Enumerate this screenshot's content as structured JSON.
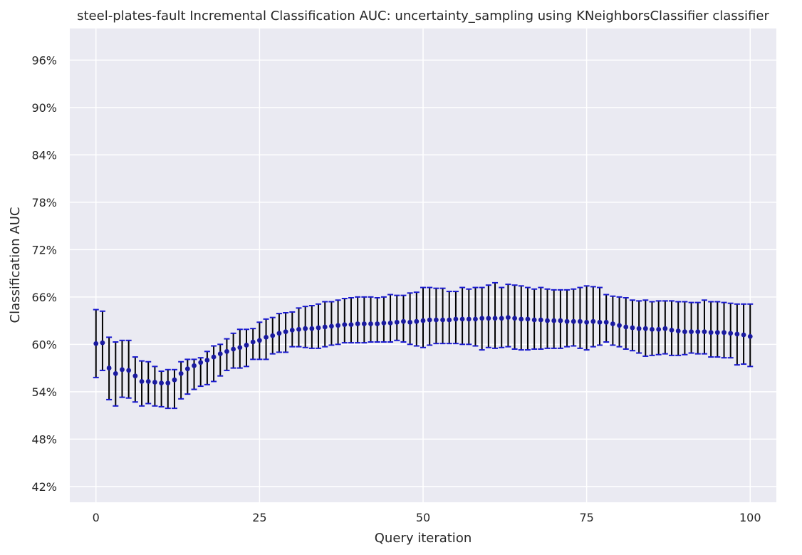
{
  "chart_data": {
    "type": "scatter",
    "title": "steel-plates-fault Incremental Classification AUC: uncertainty_sampling using KNeighborsClassifier classifier",
    "xlabel": "Query iteration",
    "ylabel": "Classification AUC",
    "xlim": [
      -4,
      104
    ],
    "ylim": [
      40,
      100
    ],
    "x_ticks": [
      0,
      25,
      50,
      75,
      100
    ],
    "y_ticks": [
      42,
      48,
      54,
      60,
      66,
      72,
      78,
      84,
      90,
      96
    ],
    "y_tick_labels": [
      "42%",
      "48%",
      "54%",
      "60%",
      "66%",
      "72%",
      "78%",
      "84%",
      "90%",
      "96%"
    ],
    "grid": true,
    "colors": {
      "background": "#eaeaf2",
      "grid": "#ffffff",
      "marker": "#1a1aa0",
      "errorbar": "#000000",
      "cap": "#1a1ad0"
    },
    "x": [
      0,
      1,
      2,
      3,
      4,
      5,
      6,
      7,
      8,
      9,
      10,
      11,
      12,
      13,
      14,
      15,
      16,
      17,
      18,
      19,
      20,
      21,
      22,
      23,
      24,
      25,
      26,
      27,
      28,
      29,
      30,
      31,
      32,
      33,
      34,
      35,
      36,
      37,
      38,
      39,
      40,
      41,
      42,
      43,
      44,
      45,
      46,
      47,
      48,
      49,
      50,
      51,
      52,
      53,
      54,
      55,
      56,
      57,
      58,
      59,
      60,
      61,
      62,
      63,
      64,
      65,
      66,
      67,
      68,
      69,
      70,
      71,
      72,
      73,
      74,
      75,
      76,
      77,
      78,
      79,
      80,
      81,
      82,
      83,
      84,
      85,
      86,
      87,
      88,
      89,
      90,
      91,
      92,
      93,
      94,
      95,
      96,
      97,
      98,
      99,
      100
    ],
    "mean": [
      60.1,
      60.2,
      57.0,
      56.3,
      56.8,
      56.7,
      56.0,
      55.3,
      55.3,
      55.2,
      55.1,
      55.1,
      55.5,
      56.3,
      56.9,
      57.3,
      57.7,
      58.0,
      58.4,
      58.8,
      59.1,
      59.4,
      59.6,
      59.9,
      60.3,
      60.5,
      60.9,
      61.1,
      61.4,
      61.6,
      61.8,
      61.9,
      62.0,
      62.0,
      62.1,
      62.2,
      62.3,
      62.4,
      62.5,
      62.5,
      62.6,
      62.6,
      62.6,
      62.6,
      62.7,
      62.7,
      62.8,
      62.9,
      62.8,
      62.9,
      63.0,
      63.1,
      63.1,
      63.1,
      63.1,
      63.2,
      63.2,
      63.2,
      63.2,
      63.3,
      63.3,
      63.3,
      63.3,
      63.4,
      63.3,
      63.2,
      63.2,
      63.1,
      63.1,
      63.0,
      63.0,
      63.0,
      62.9,
      62.9,
      62.9,
      62.8,
      62.9,
      62.8,
      62.8,
      62.6,
      62.4,
      62.2,
      62.1,
      62.0,
      62.0,
      61.9,
      61.9,
      62.0,
      61.8,
      61.7,
      61.6,
      61.6,
      61.6,
      61.6,
      61.5,
      61.5,
      61.5,
      61.4,
      61.3,
      61.2,
      61.0
    ],
    "lower": [
      55.8,
      56.7,
      53.0,
      52.2,
      53.3,
      53.2,
      52.7,
      52.2,
      52.5,
      52.2,
      52.1,
      51.9,
      51.9,
      53.1,
      53.7,
      54.3,
      54.7,
      54.9,
      55.3,
      56.0,
      56.7,
      57.0,
      57.0,
      57.2,
      58.1,
      58.1,
      58.1,
      58.8,
      59.0,
      59.0,
      59.7,
      59.7,
      59.6,
      59.5,
      59.5,
      59.7,
      59.9,
      60.0,
      60.2,
      60.2,
      60.2,
      60.2,
      60.3,
      60.3,
      60.3,
      60.3,
      60.5,
      60.3,
      60.0,
      59.8,
      59.6,
      59.9,
      60.1,
      60.1,
      60.1,
      60.1,
      60.0,
      60.0,
      59.8,
      59.3,
      59.6,
      59.5,
      59.6,
      59.7,
      59.4,
      59.3,
      59.3,
      59.4,
      59.4,
      59.5,
      59.5,
      59.5,
      59.7,
      59.8,
      59.5,
      59.3,
      59.7,
      59.9,
      60.3,
      59.9,
      59.7,
      59.4,
      59.2,
      58.9,
      58.5,
      58.6,
      58.7,
      58.8,
      58.6,
      58.6,
      58.7,
      58.9,
      58.8,
      58.8,
      58.4,
      58.4,
      58.3,
      58.3,
      57.4,
      57.5,
      57.2
    ],
    "upper": [
      64.4,
      64.2,
      60.9,
      60.3,
      60.5,
      60.5,
      58.4,
      57.9,
      57.8,
      57.2,
      56.6,
      56.8,
      56.8,
      57.8,
      58.1,
      58.1,
      58.3,
      59.1,
      59.8,
      60.0,
      60.7,
      61.4,
      61.9,
      61.9,
      62.0,
      62.8,
      63.2,
      63.4,
      63.9,
      64.0,
      64.1,
      64.6,
      64.8,
      64.9,
      65.1,
      65.4,
      65.4,
      65.6,
      65.8,
      65.9,
      66.0,
      66.0,
      66.0,
      65.9,
      66.0,
      66.3,
      66.2,
      66.2,
      66.5,
      66.6,
      67.2,
      67.2,
      67.1,
      67.1,
      66.7,
      66.7,
      67.2,
      67.0,
      67.2,
      67.2,
      67.5,
      67.8,
      67.2,
      67.6,
      67.5,
      67.4,
      67.2,
      67.0,
      67.2,
      67.0,
      66.9,
      66.9,
      66.9,
      67.0,
      67.2,
      67.4,
      67.3,
      67.2,
      66.3,
      66.1,
      66.0,
      65.9,
      65.6,
      65.5,
      65.6,
      65.4,
      65.5,
      65.5,
      65.5,
      65.4,
      65.4,
      65.3,
      65.3,
      65.6,
      65.4,
      65.4,
      65.3,
      65.2,
      65.1,
      65.1,
      65.1
    ]
  }
}
